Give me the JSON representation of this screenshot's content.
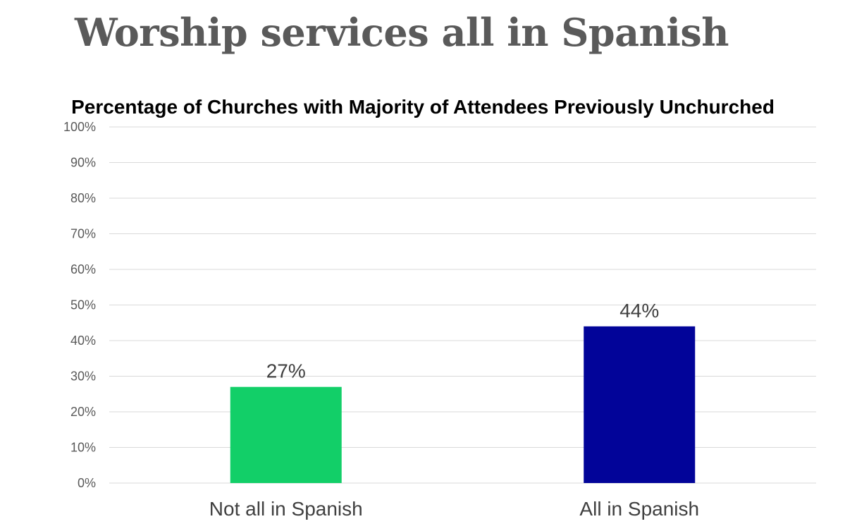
{
  "slide": {
    "title": "Worship services all in Spanish"
  },
  "chart_data": {
    "type": "bar",
    "title": "Percentage of Churches with Majority of Attendees Previously Unchurched",
    "categories": [
      "Not all in Spanish",
      "All in Spanish"
    ],
    "values": [
      27,
      44
    ],
    "value_labels": [
      "27%",
      "44%"
    ],
    "bar_colors": [
      "#12cf68",
      "#020499"
    ],
    "ylim": [
      0,
      100
    ],
    "y_ticks": [
      0,
      10,
      20,
      30,
      40,
      50,
      60,
      70,
      80,
      90,
      100
    ],
    "y_tick_labels": [
      "0%",
      "10%",
      "20%",
      "30%",
      "40%",
      "50%",
      "60%",
      "70%",
      "80%",
      "90%",
      "100%"
    ],
    "xlabel": "",
    "ylabel": "",
    "grid": true,
    "legend": "none"
  }
}
